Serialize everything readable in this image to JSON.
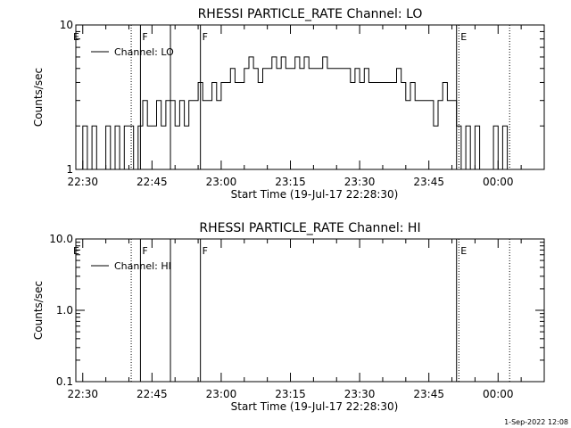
{
  "footer": {
    "timestamp": "1-Sep-2022 12:08"
  },
  "chart_data": [
    {
      "type": "line",
      "title": "RHESSI PARTICLE_RATE Channel: LO",
      "xlabel": "Start Time (19-Jul-17 22:28:30)",
      "ylabel": "Counts/sec",
      "yscale": "log",
      "ylim": [
        1,
        10
      ],
      "yticks": [
        1,
        10
      ],
      "ytick_labels": [
        "1",
        "10"
      ],
      "xlim": [
        "22:28:30",
        "00:10:00"
      ],
      "xticks": [
        "22:30",
        "22:45",
        "23:00",
        "23:15",
        "23:30",
        "23:45",
        "00:00"
      ],
      "grid": false,
      "legend": {
        "position": "top-left",
        "entries": [
          "Channel: LO"
        ]
      },
      "vertical_markers": [
        {
          "time": "22:40:30",
          "style": "dotted",
          "label": ""
        },
        {
          "time": "22:42:30",
          "style": "solid",
          "label": "F"
        },
        {
          "time": "22:49:00",
          "style": "solid",
          "label": ""
        },
        {
          "time": "22:55:30",
          "style": "solid",
          "label": "F"
        },
        {
          "time": "23:51:00",
          "style": "solid",
          "label": ""
        },
        {
          "time": "23:51:30",
          "style": "dotted",
          "label": "E"
        },
        {
          "time": "00:02:30",
          "style": "dotted",
          "label": ""
        }
      ],
      "edge_labels": [
        {
          "position": "left",
          "label": "E"
        }
      ],
      "series": [
        {
          "name": "Channel: LO",
          "x": [
            "22:29:00",
            "22:30:00",
            "22:31:00",
            "22:32:00",
            "22:33:00",
            "22:34:00",
            "22:35:00",
            "22:36:00",
            "22:37:00",
            "22:38:00",
            "22:39:00",
            "22:40:00",
            "22:41:00",
            "22:42:00",
            "22:43:00",
            "22:44:00",
            "22:45:00",
            "22:46:00",
            "22:47:00",
            "22:48:00",
            "22:49:00",
            "22:50:00",
            "22:51:00",
            "22:52:00",
            "22:53:00",
            "22:54:00",
            "22:55:00",
            "22:56:00",
            "22:57:00",
            "22:58:00",
            "22:59:00",
            "23:00:00",
            "23:01:00",
            "23:02:00",
            "23:03:00",
            "23:04:00",
            "23:05:00",
            "23:06:00",
            "23:07:00",
            "23:08:00",
            "23:09:00",
            "23:10:00",
            "23:11:00",
            "23:12:00",
            "23:13:00",
            "23:14:00",
            "23:15:00",
            "23:16:00",
            "23:17:00",
            "23:18:00",
            "23:19:00",
            "23:20:00",
            "23:21:00",
            "23:22:00",
            "23:23:00",
            "23:24:00",
            "23:25:00",
            "23:26:00",
            "23:27:00",
            "23:28:00",
            "23:29:00",
            "23:30:00",
            "23:31:00",
            "23:32:00",
            "23:33:00",
            "23:34:00",
            "23:35:00",
            "23:36:00",
            "23:37:00",
            "23:38:00",
            "23:39:00",
            "23:40:00",
            "23:41:00",
            "23:42:00",
            "23:43:00",
            "23:44:00",
            "23:45:00",
            "23:46:00",
            "23:47:00",
            "23:48:00",
            "23:49:00",
            "23:50:00",
            "23:51:00",
            "23:52:00",
            "23:53:00",
            "23:54:00",
            "23:55:00",
            "23:56:00",
            "23:57:00",
            "23:58:00",
            "23:59:00",
            "00:00:00",
            "00:01:00",
            "00:02:00"
          ],
          "y": [
            1,
            2,
            1,
            2,
            1,
            1,
            2,
            1,
            2,
            1,
            2,
            2,
            1,
            2,
            3,
            2,
            2,
            3,
            2,
            3,
            3,
            2,
            3,
            2,
            3,
            3,
            4,
            3,
            3,
            4,
            3,
            4,
            4,
            5,
            4,
            4,
            5,
            6,
            5,
            4,
            5,
            5,
            6,
            5,
            6,
            5,
            5,
            6,
            5,
            6,
            5,
            5,
            5,
            6,
            5,
            5,
            5,
            5,
            5,
            4,
            5,
            4,
            5,
            4,
            4,
            4,
            4,
            4,
            4,
            5,
            4,
            3,
            4,
            3,
            3,
            3,
            3,
            2,
            3,
            4,
            3,
            3,
            2,
            1,
            2,
            1,
            2,
            1,
            1,
            1,
            2,
            1,
            2,
            1
          ]
        }
      ]
    },
    {
      "type": "line",
      "title": "RHESSI PARTICLE_RATE Channel: HI",
      "xlabel": "Start Time (19-Jul-17 22:28:30)",
      "ylabel": "Counts/sec",
      "yscale": "log",
      "ylim": [
        0.1,
        10
      ],
      "yticks": [
        0.1,
        1,
        10
      ],
      "ytick_labels": [
        "0.1",
        "1.0",
        "10.0"
      ],
      "xlim": [
        "22:28:30",
        "00:10:00"
      ],
      "xticks": [
        "22:30",
        "22:45",
        "23:00",
        "23:15",
        "23:30",
        "23:45",
        "00:00"
      ],
      "grid": false,
      "legend": {
        "position": "top-left",
        "entries": [
          "Channel: HI"
        ]
      },
      "vertical_markers": [
        {
          "time": "22:40:30",
          "style": "dotted",
          "label": ""
        },
        {
          "time": "22:42:30",
          "style": "solid",
          "label": "F"
        },
        {
          "time": "22:49:00",
          "style": "solid",
          "label": ""
        },
        {
          "time": "22:55:30",
          "style": "solid",
          "label": "F"
        },
        {
          "time": "23:51:00",
          "style": "solid",
          "label": ""
        },
        {
          "time": "23:51:30",
          "style": "dotted",
          "label": "E"
        },
        {
          "time": "00:02:30",
          "style": "dotted",
          "label": ""
        }
      ],
      "edge_labels": [
        {
          "position": "left",
          "label": "E"
        }
      ],
      "series": [
        {
          "name": "Channel: HI",
          "x": [],
          "y": []
        }
      ]
    }
  ]
}
